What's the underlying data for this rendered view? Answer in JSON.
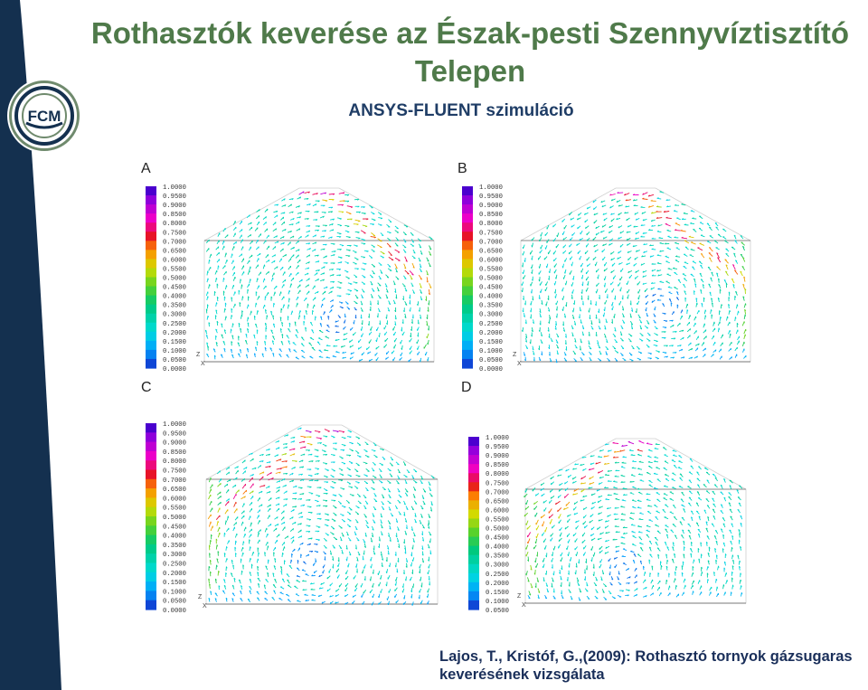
{
  "slide": {
    "title": "Rothasztók keverése az Észak-pesti Szennyvíztisztító Telepen",
    "subtitle": "ANSYS-FLUENT szimuláció",
    "citation": "Lajos, T., Kristóf, G.,(2009): Rothasztó tornyok gázsugaras keverésének vizsgálata",
    "logo_text": "FCM"
  },
  "colors": {
    "sidebar": "#14304f",
    "title": "#4f7a4a",
    "subtitle": "#1f3d66",
    "citation": "#1a2f5a"
  },
  "legend_ticks_full": [
    "1.0000",
    "0.9500",
    "0.9000",
    "0.8500",
    "0.8000",
    "0.7500",
    "0.7000",
    "0.6500",
    "0.6000",
    "0.5500",
    "0.5000",
    "0.4500",
    "0.4000",
    "0.3500",
    "0.3000",
    "0.2500",
    "0.2000",
    "0.1500",
    "0.1000",
    "0.0500",
    "0.0000"
  ],
  "legend_ticks_d": [
    "1.0000",
    "0.9500",
    "0.9000",
    "0.8500",
    "0.8000",
    "0.7500",
    "0.7000",
    "0.6500",
    "0.6000",
    "0.5500",
    "0.5000",
    "0.4500",
    "0.4000",
    "0.3500",
    "0.3000",
    "0.2500",
    "0.2000",
    "0.1500",
    "0.1000",
    "0.0500"
  ],
  "panels": [
    {
      "id": "A",
      "label": "A",
      "axis_z": "Z",
      "axis_x": "X"
    },
    {
      "id": "B",
      "label": "B",
      "axis_z": "Z",
      "axis_x": "X"
    },
    {
      "id": "C",
      "label": "C",
      "axis_z": "Z",
      "axis_x": "X"
    },
    {
      "id": "D",
      "label": "D",
      "axis_z": "Z",
      "axis_x": "X"
    }
  ]
}
